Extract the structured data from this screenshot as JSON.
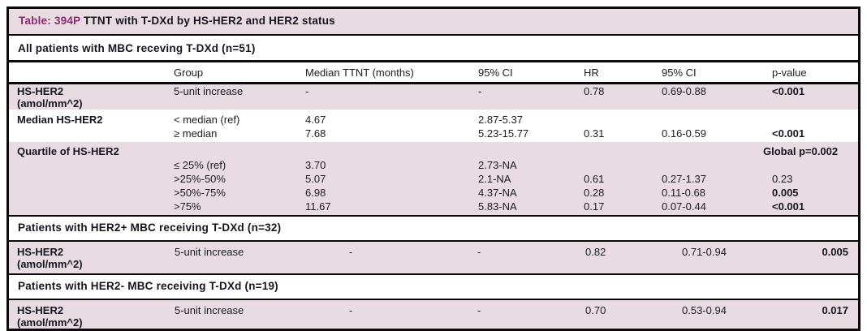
{
  "title": {
    "tag": "Table: 394P",
    "text": " TTNT with T-DXd by HS-HER2 and HER2 status"
  },
  "colors": {
    "row_shade": "#e8dce2",
    "accent": "#90286f",
    "border": "#0a0a0a"
  },
  "columns": {
    "group": "Group",
    "ttnt": "Median TTNT (months)",
    "ci1": "95% CI",
    "hr": "HR",
    "ci2": "95% CI",
    "p": "p-value"
  },
  "section1": {
    "header": "All patients with MBC receving T-DXd (n=51)",
    "hs_her2": {
      "label_line1": "HS-HER2",
      "label_line2": "(amol/mm^2)",
      "row": {
        "group": "5-unit increase",
        "ttnt": "-",
        "ci1": "-",
        "hr": "0.78",
        "ci2": "0.69-0.88",
        "p": "<0.001"
      }
    },
    "median": {
      "label": "Median HS-HER2",
      "rows": [
        {
          "group": "< median (ref)",
          "ttnt": "4.67",
          "ci1": "2.87-5.37",
          "hr": "",
          "ci2": "",
          "p": ""
        },
        {
          "group": "≥ median",
          "ttnt": "7.68",
          "ci1": "5.23-15.77",
          "hr": "0.31",
          "ci2": "0.16-0.59",
          "p": "<0.001"
        }
      ]
    },
    "quartile": {
      "label": "Quartile of HS-HER2",
      "global_p": "Global p=0.002",
      "rows": [
        {
          "group": "≤ 25% (ref)",
          "ttnt": "3.70",
          "ci1": "2.73-NA",
          "hr": "",
          "ci2": "",
          "p": ""
        },
        {
          "group": ">25%-50%",
          "ttnt": "5.07",
          "ci1": "2.1-NA",
          "hr": "0.61",
          "ci2": "0.27-1.37",
          "p": "0.23"
        },
        {
          "group": ">50%-75%",
          "ttnt": "6.98",
          "ci1": "4.37-NA",
          "hr": "0.28",
          "ci2": "0.11-0.68",
          "p": "0.005"
        },
        {
          "group": ">75%",
          "ttnt": "11.67",
          "ci1": "5.83-NA",
          "hr": "0.17",
          "ci2": "0.07-0.44",
          "p": "<0.001"
        }
      ]
    }
  },
  "section2": {
    "header": "Patients with HER2+ MBC receiving T-DXd (n=32)",
    "row": {
      "label_line1": "HS-HER2",
      "label_line2": "(amol/mm^2)",
      "group": "5-unit increase",
      "ttnt": "-",
      "ci1": "-",
      "hr": "0.82",
      "ci2": "0.71-0.94",
      "p": "0.005"
    }
  },
  "section3": {
    "header": "Patients with HER2- MBC receiving T-DXd (n=19)",
    "row": {
      "label_line1": "HS-HER2",
      "label_line2": "(amol/mm^2)",
      "group": "5-unit increase",
      "ttnt": "-",
      "ci1": "-",
      "hr": "0.70",
      "ci2": "0.53-0.94",
      "p": "0.017"
    }
  }
}
